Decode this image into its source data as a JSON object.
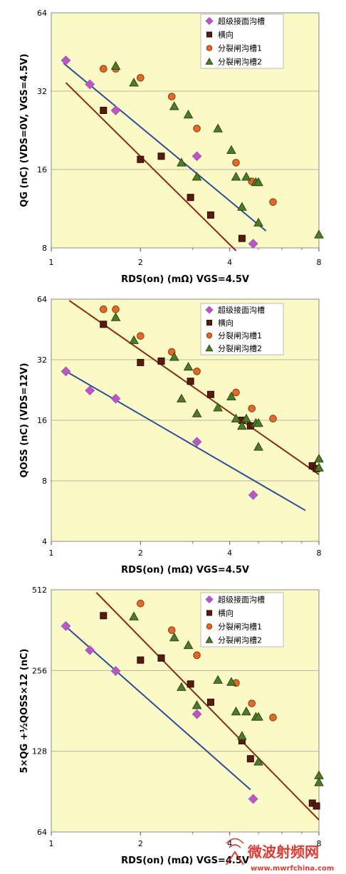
{
  "chart_data": [
    {
      "type": "scatter",
      "ylabel": "Q_G (nC) (V_DS=0V, V_GS=4.5V)",
      "xlabel": "R_DS(on) (mΩ) V_GS=4.5V",
      "x_scale": "log",
      "y_scale": "log",
      "xlim": [
        1,
        8
      ],
      "ylim": [
        8,
        64
      ],
      "xticks": [
        1,
        2,
        4,
        8
      ],
      "yticks": [
        8,
        16,
        32,
        64
      ],
      "legend_position": "top-right",
      "series": [
        {
          "name": "超级接面沟槽",
          "marker": "diamond",
          "color": "#d04bc8",
          "points": [
            [
              1.12,
              42
            ],
            [
              1.35,
              34
            ],
            [
              1.65,
              27
            ],
            [
              3.1,
              18
            ],
            [
              4.8,
              8.3
            ]
          ]
        },
        {
          "name": "横向",
          "marker": "square",
          "color": "#5a1a10",
          "points": [
            [
              1.5,
              27
            ],
            [
              2.0,
              17.5
            ],
            [
              2.35,
              18
            ],
            [
              2.95,
              12.5
            ],
            [
              3.45,
              10.7
            ],
            [
              4.4,
              8.7
            ]
          ]
        },
        {
          "name": "分裂闸沟槽1",
          "marker": "circle",
          "color": "#e06a28",
          "points": [
            [
              1.5,
              39
            ],
            [
              1.65,
              39
            ],
            [
              2.0,
              36
            ],
            [
              2.55,
              30.5
            ],
            [
              3.1,
              23
            ],
            [
              4.2,
              17
            ],
            [
              4.75,
              14.4
            ],
            [
              5.6,
              12
            ]
          ]
        },
        {
          "name": "分裂闸沟槽2",
          "marker": "triangle",
          "color": "#4f7a28",
          "points": [
            [
              1.65,
              40
            ],
            [
              1.9,
              34.5
            ],
            [
              2.6,
              28
            ],
            [
              2.75,
              17
            ],
            [
              2.9,
              26
            ],
            [
              3.1,
              15
            ],
            [
              3.65,
              23
            ],
            [
              4.05,
              19
            ],
            [
              4.2,
              15
            ],
            [
              4.4,
              11.5
            ],
            [
              4.55,
              15
            ],
            [
              4.9,
              14.3
            ],
            [
              5.0,
              14.3
            ],
            [
              5.0,
              10
            ],
            [
              8.0,
              9
            ]
          ]
        }
      ],
      "trendlines": [
        {
          "color": "#2a4f9c",
          "from": [
            1.1,
            41
          ],
          "to": [
            5.3,
            9.3
          ]
        },
        {
          "color": "#8a2a10",
          "from": [
            1.12,
            34.5
          ],
          "to": [
            4.2,
            7.8
          ]
        }
      ]
    },
    {
      "type": "scatter",
      "ylabel": "Q_OSS (nC) (V_DS=12V)",
      "xlabel": "R_DS(on) (mΩ) V_GS=4.5V",
      "x_scale": "log",
      "y_scale": "log",
      "xlim": [
        1,
        8
      ],
      "ylim": [
        4,
        64
      ],
      "xticks": [
        1,
        2,
        4,
        8
      ],
      "yticks": [
        4,
        8,
        16,
        32,
        64
      ],
      "legend_position": "top-right",
      "series": [
        {
          "name": "超级接面沟槽",
          "marker": "diamond",
          "color": "#d04bc8",
          "points": [
            [
              1.12,
              28
            ],
            [
              1.35,
              22.5
            ],
            [
              1.65,
              20.5
            ],
            [
              3.1,
              12.5
            ],
            [
              4.8,
              6.8
            ]
          ]
        },
        {
          "name": "横向",
          "marker": "square",
          "color": "#5a1a10",
          "points": [
            [
              1.5,
              48
            ],
            [
              2.0,
              31
            ],
            [
              2.35,
              31.5
            ],
            [
              2.95,
              25
            ],
            [
              3.45,
              21.5
            ],
            [
              4.4,
              16
            ],
            [
              4.7,
              15
            ],
            [
              7.6,
              9.5
            ],
            [
              7.85,
              9.2
            ]
          ]
        },
        {
          "name": "分裂闸沟槽1",
          "marker": "circle",
          "color": "#e06a28",
          "points": [
            [
              1.5,
              57
            ],
            [
              1.65,
              57
            ],
            [
              2.0,
              42
            ],
            [
              2.55,
              35
            ],
            [
              3.1,
              28
            ],
            [
              4.2,
              22
            ],
            [
              4.75,
              18.3
            ],
            [
              5.6,
              16.3
            ]
          ]
        },
        {
          "name": "分裂闸沟槽2",
          "marker": "triangle",
          "color": "#4f7a28",
          "points": [
            [
              1.65,
              52
            ],
            [
              1.9,
              40
            ],
            [
              2.6,
              33
            ],
            [
              2.75,
              20.5
            ],
            [
              2.9,
              29.5
            ],
            [
              3.1,
              17.3
            ],
            [
              3.65,
              18.5
            ],
            [
              4.05,
              21
            ],
            [
              4.2,
              16.3
            ],
            [
              4.4,
              15
            ],
            [
              4.55,
              16.3
            ],
            [
              4.9,
              15.5
            ],
            [
              5.0,
              15.5
            ],
            [
              5.0,
              11.8
            ],
            [
              8.0,
              10.3
            ],
            [
              8.0,
              9.3
            ]
          ]
        }
      ],
      "trendlines": [
        {
          "color": "#2a4f9c",
          "from": [
            1.1,
            28.5
          ],
          "to": [
            7.2,
            5.7
          ]
        },
        {
          "color": "#8a2a10",
          "from": [
            1.15,
            63
          ],
          "to": [
            8.0,
            8.6
          ]
        }
      ]
    },
    {
      "type": "scatter",
      "ylabel": "5×Q_G +½Q_OSS×12 (nC)",
      "xlabel": "R_DS(on) (mΩ) V_GS=4.5V",
      "x_scale": "log",
      "y_scale": "log",
      "xlim": [
        1,
        8
      ],
      "ylim": [
        64,
        512
      ],
      "xticks": [
        1,
        2,
        4,
        8
      ],
      "yticks": [
        64,
        128,
        256,
        512
      ],
      "legend_position": "top-right",
      "series": [
        {
          "name": "超级接面沟槽",
          "marker": "diamond",
          "color": "#d04bc8",
          "points": [
            [
              1.12,
              375
            ],
            [
              1.35,
              305
            ],
            [
              1.65,
              255
            ],
            [
              3.1,
              176
            ],
            [
              4.8,
              85
            ]
          ]
        },
        {
          "name": "横向",
          "marker": "square",
          "color": "#5a1a10",
          "points": [
            [
              1.5,
              410
            ],
            [
              2.0,
              280
            ],
            [
              2.35,
              285
            ],
            [
              2.95,
              228
            ],
            [
              3.45,
              195
            ],
            [
              4.4,
              140
            ],
            [
              4.7,
              120
            ],
            [
              7.6,
              82
            ],
            [
              7.85,
              80
            ]
          ]
        },
        {
          "name": "分裂闸沟槽1",
          "marker": "circle",
          "color": "#e06a28",
          "points": [
            [
              2.0,
              455
            ],
            [
              2.55,
              362
            ],
            [
              3.1,
              292
            ],
            [
              4.2,
              230
            ],
            [
              4.75,
              193
            ],
            [
              5.6,
              171
            ]
          ]
        },
        {
          "name": "分裂闸沟槽2",
          "marker": "triangle",
          "color": "#4f7a28",
          "points": [
            [
              1.9,
              407
            ],
            [
              2.6,
              340
            ],
            [
              2.75,
              222
            ],
            [
              2.9,
              318
            ],
            [
              3.1,
              190
            ],
            [
              3.65,
              236
            ],
            [
              4.05,
              232
            ],
            [
              4.2,
              180
            ],
            [
              4.4,
              146
            ],
            [
              4.55,
              180
            ],
            [
              4.9,
              172
            ],
            [
              5.0,
              172
            ],
            [
              5.0,
              117
            ],
            [
              8.0,
              104
            ],
            [
              8.0,
              98
            ]
          ]
        }
      ],
      "trendlines": [
        {
          "color": "#2a4f9c",
          "from": [
            1.1,
            380
          ],
          "to": [
            4.7,
            92
          ]
        },
        {
          "color": "#8a2a10",
          "from": [
            1.42,
            500
          ],
          "to": [
            8.0,
            71
          ]
        }
      ]
    }
  ],
  "watermark": {
    "title": "微波射频网",
    "url": "www.mwrfchina.com"
  }
}
